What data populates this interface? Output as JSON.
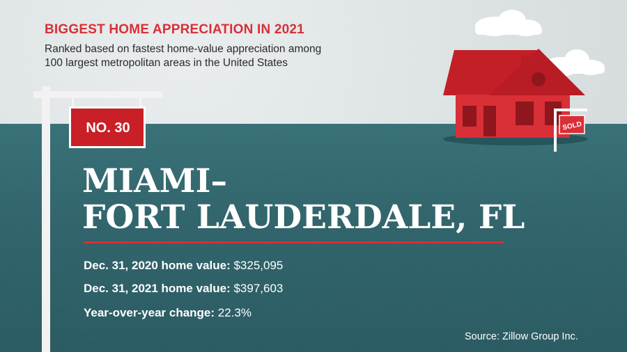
{
  "header": {
    "kicker": "BIGGEST HOME APPRECIATION IN 2021",
    "subtitle_line1": "Ranked based on fastest home-value appreciation among",
    "subtitle_line2": "100 largest metropolitan areas in the United States"
  },
  "rank": {
    "label": "NO. 30"
  },
  "city": {
    "line1": "MIAMI–",
    "line2": "FORT LAUDERDALE, FL"
  },
  "stats": [
    {
      "label": "Dec. 31, 2020 home value:",
      "value": "$325,095"
    },
    {
      "label": "Dec. 31, 2021 home value:",
      "value": "$397,603"
    },
    {
      "label": "Year-over-year change:",
      "value": "22.3%"
    }
  ],
  "illustration": {
    "sold_sign": "SOLD"
  },
  "footer": {
    "source": "Source: Zillow Group Inc."
  },
  "colors": {
    "accent": "#d92f36",
    "ground": "#245c64",
    "sky": "#e3e8e9",
    "text": "#ffffff"
  },
  "icons": [
    "house-icon",
    "cloud-icon",
    "sold-sign-icon",
    "signpost-icon"
  ]
}
